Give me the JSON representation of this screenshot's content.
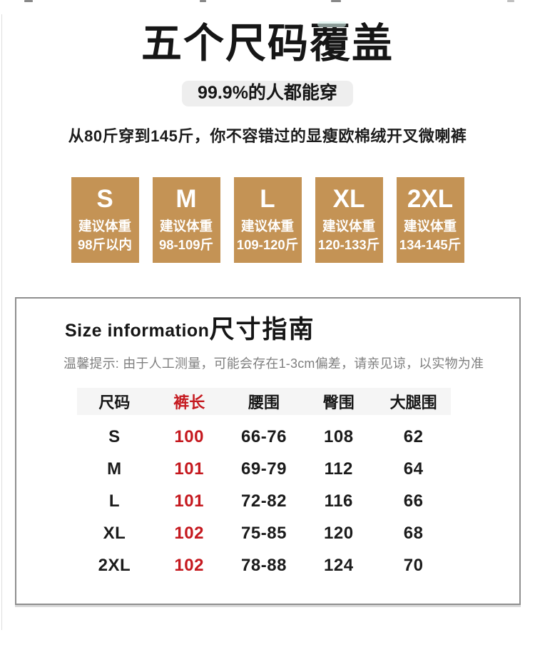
{
  "hero": {
    "title": "五个尺码覆盖",
    "badge": "99.9%的人都能穿",
    "subtitle": "从80斤穿到145斤，你不容错过的显瘦欧棉绒开叉微喇裤"
  },
  "size_cards": [
    {
      "size": "S",
      "label": "建议体重",
      "range": "98斤以内"
    },
    {
      "size": "M",
      "label": "建议体重",
      "range": "98-109斤"
    },
    {
      "size": "L",
      "label": "建议体重",
      "range": "109-120斤"
    },
    {
      "size": "XL",
      "label": "建议体重",
      "range": "120-133斤"
    },
    {
      "size": "2XL",
      "label": "建议体重",
      "range": "134-145斤"
    }
  ],
  "size_info": {
    "title_en": "Size information",
    "title_zh": "尺寸指南",
    "note": "温馨提示: 由于人工测量，可能会存在1-3cm偏差，请亲见谅，以实物为准",
    "table": {
      "headers": [
        "尺码",
        "裤长",
        "腰围",
        "臀围",
        "大腿围"
      ],
      "rows": [
        [
          "S",
          "100",
          "66-76",
          "108",
          "62"
        ],
        [
          "M",
          "101",
          "69-79",
          "112",
          "64"
        ],
        [
          "L",
          "101",
          "72-82",
          "116",
          "66"
        ],
        [
          "XL",
          "102",
          "75-85",
          "120",
          "68"
        ],
        [
          "2XL",
          "102",
          "78-88",
          "124",
          "70"
        ]
      ]
    }
  },
  "colors": {
    "accent_red": "#c5191f",
    "card_bg": "#c49355",
    "badge_bg": "#eeeeee",
    "table_header_bg": "#f5f5f5"
  }
}
